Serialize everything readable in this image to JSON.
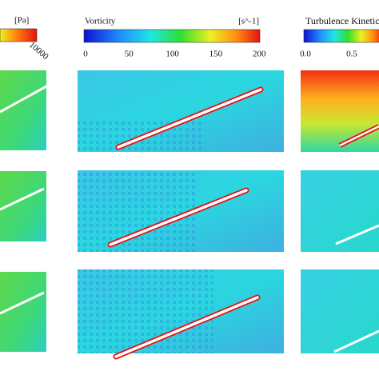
{
  "colorbars": [
    {
      "unit": "[Pa]",
      "ticks": [
        "10000"
      ]
    },
    {
      "title": "Vorticity",
      "unit": "[s^-1]",
      "ticks": [
        "0",
        "50",
        "100",
        "150",
        "200"
      ]
    },
    {
      "title": "Turbulence Kinetic",
      "ticks": [
        "0.0",
        "0.5"
      ]
    }
  ]
}
